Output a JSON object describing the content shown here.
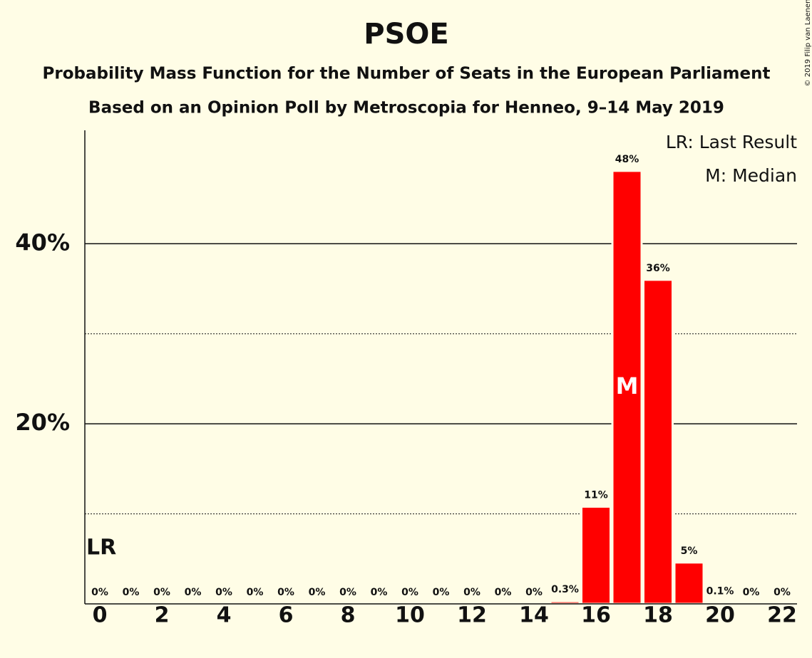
{
  "chart_data": {
    "type": "bar",
    "title": "PSOE",
    "subtitle": "Probability Mass Function for the Number of Seats in the European Parliament",
    "subtitle2": "Based on an Opinion Poll by Metroscopia for Henneo, 9–14 May 2019",
    "credit": "© 2019 Filip van Laenen",
    "categories": [
      "0",
      null,
      "2",
      null,
      "4",
      null,
      "6",
      null,
      "8",
      null,
      "10",
      null,
      "12",
      null,
      "14",
      null,
      "16",
      null,
      "18",
      null,
      "20",
      null,
      "22"
    ],
    "values": [
      0,
      0,
      0,
      0,
      0,
      0,
      0,
      0,
      0,
      0,
      0,
      0,
      0,
      0,
      0,
      0.3,
      10.8,
      48.1,
      36,
      4.6,
      0.1,
      0,
      0
    ],
    "value_labels": [
      "0%",
      "0%",
      "0%",
      "0%",
      "0%",
      "0%",
      "0%",
      "0%",
      "0%",
      "0%",
      "0%",
      "0%",
      "0%",
      "0%",
      "0%",
      "0.3%",
      "11%",
      "48%",
      "36%",
      "5%",
      "0.1%",
      "0%",
      "0%"
    ],
    "color": "#ff0000",
    "ylim": [
      0,
      52.6
    ],
    "yticks": [
      {
        "value": 20,
        "label": "20%"
      },
      {
        "value": 40,
        "label": "40%"
      }
    ],
    "minor_grid": [
      10,
      30
    ],
    "grid": true,
    "markers": {
      "last_result": {
        "index": 0,
        "label": "LR"
      },
      "median": {
        "index": 17,
        "label": "M"
      }
    },
    "legend": [
      "LR: Last Result",
      "M: Median"
    ],
    "legend_position": "top-right"
  }
}
